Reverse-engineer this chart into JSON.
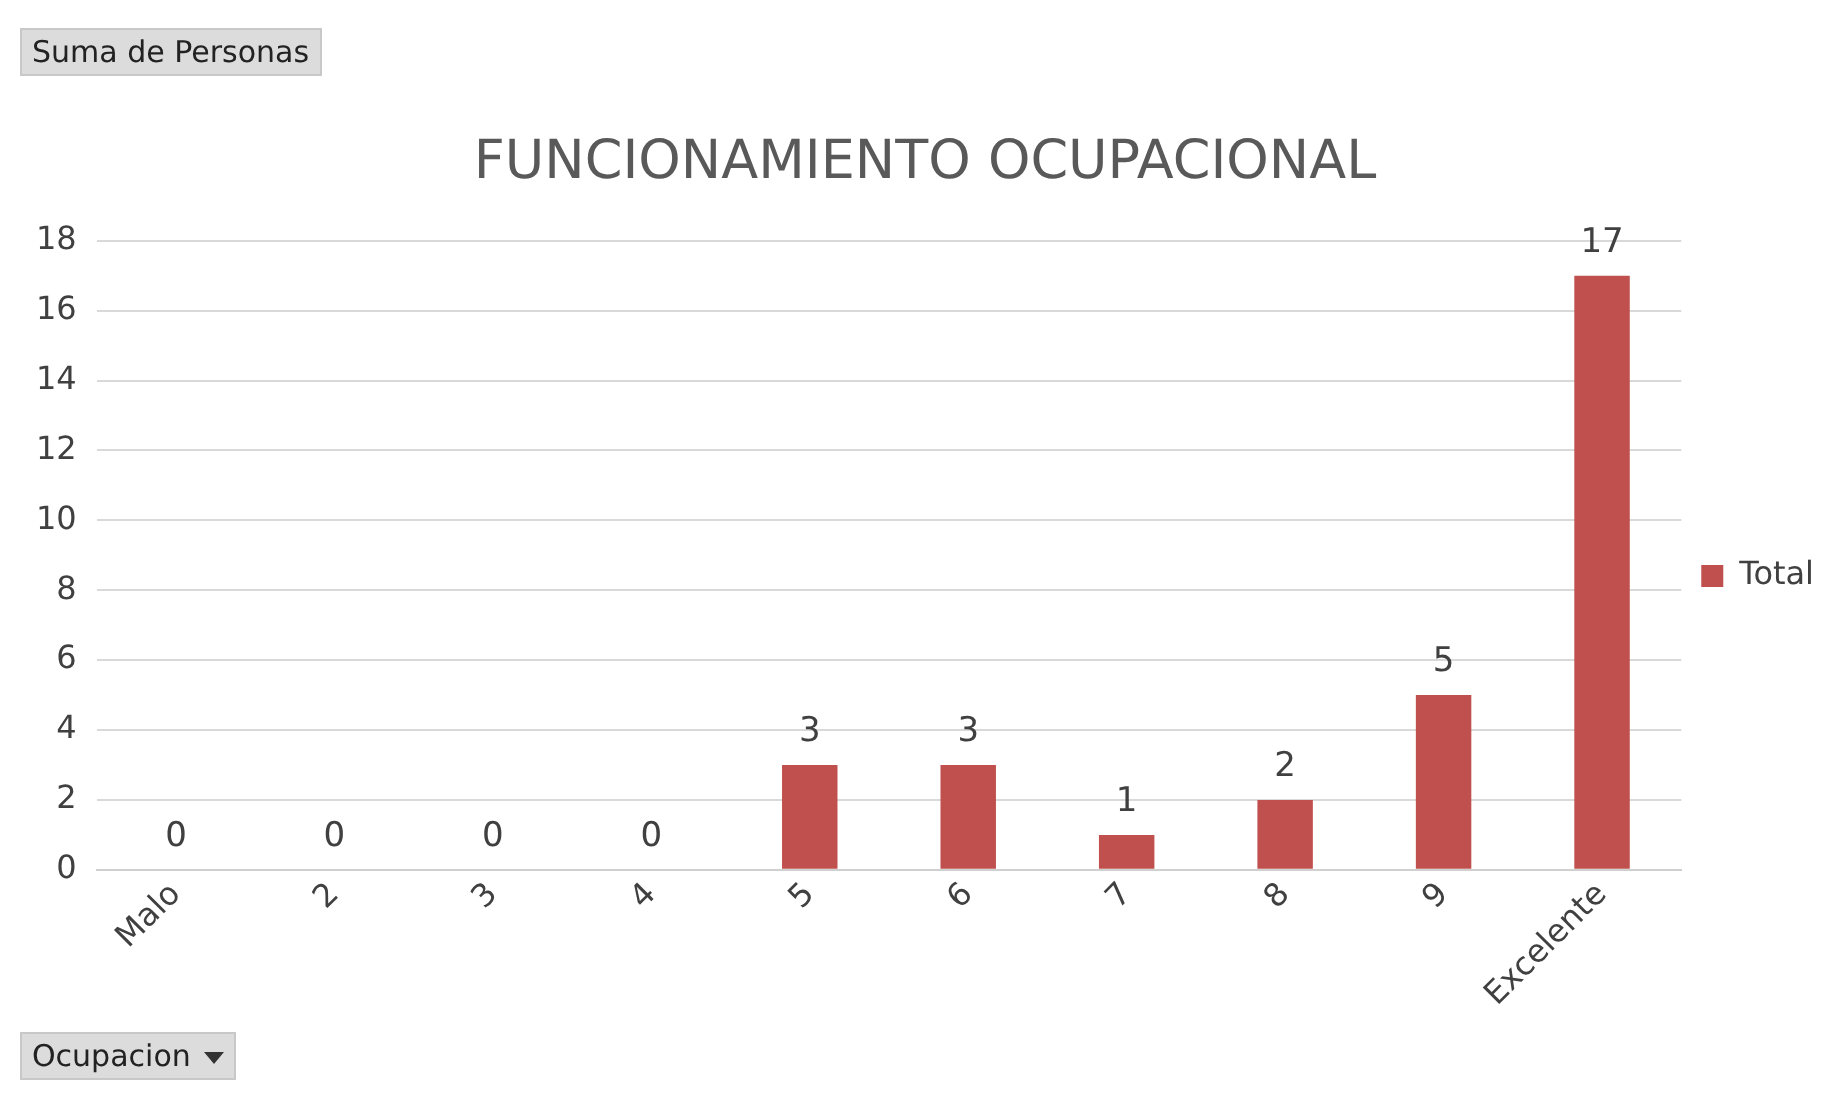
{
  "chart_data": {
    "type": "bar",
    "title": "FUNCIONAMIENTO OCUPACIONAL",
    "categories": [
      "Malo",
      "2",
      "3",
      "4",
      "5",
      "6",
      "7",
      "8",
      "9",
      "Excelente"
    ],
    "series": [
      {
        "name": "Total",
        "color": "#c0504d",
        "values": [
          0,
          0,
          0,
          0,
          3,
          3,
          1,
          2,
          5,
          17
        ]
      }
    ],
    "ylim": [
      0,
      18
    ],
    "yticks": [
      0,
      2,
      4,
      6,
      8,
      10,
      12,
      14,
      16,
      18
    ],
    "grid": "y",
    "legend": "right",
    "data_labels": true,
    "annotations": [
      "Suma de Personas",
      "Ocupacion"
    ]
  }
}
